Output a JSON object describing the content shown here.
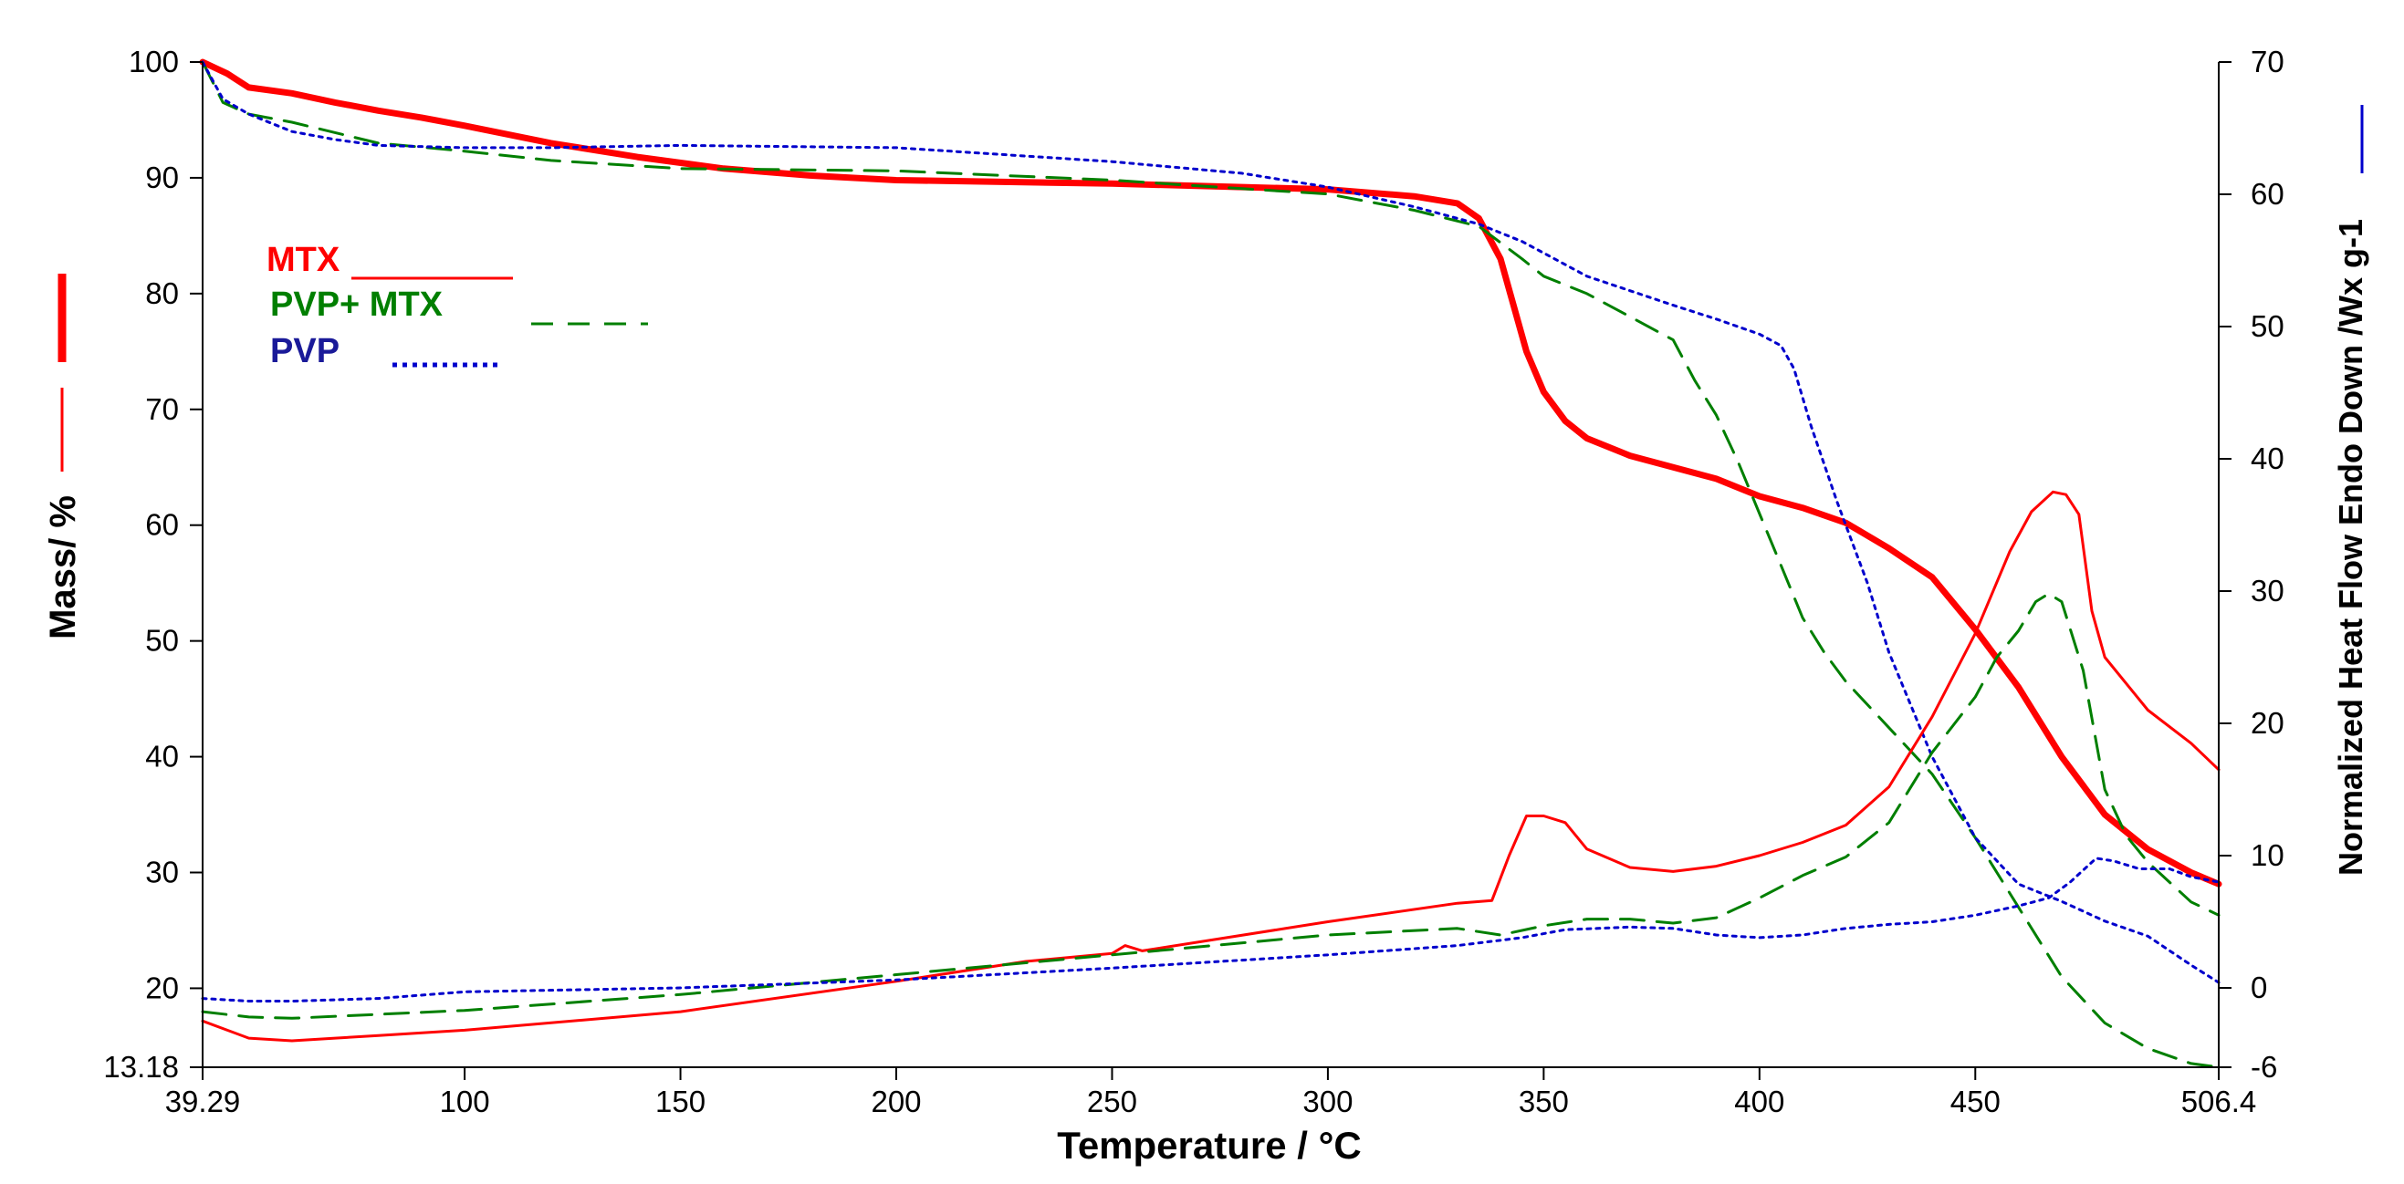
{
  "chart_data": {
    "type": "line",
    "xlabel": "Temperature / °C",
    "ylabel_left": "Mass/ %",
    "ylabel_right": "Normalized Heat Flow Endo Down /Wx g-1",
    "xlim": [
      39.29,
      506.4
    ],
    "ylim_left": [
      13.18,
      100
    ],
    "ylim_right": [
      -6,
      70
    ],
    "x_ticks": [
      "39.29",
      "100",
      "150",
      "200",
      "250",
      "300",
      "350",
      "400",
      "450",
      "506.4"
    ],
    "y_left_ticks": [
      "13.18",
      "20",
      "30",
      "40",
      "50",
      "60",
      "70",
      "80",
      "90",
      "100"
    ],
    "y_right_ticks": [
      "-6",
      "0",
      "10",
      "20",
      "30",
      "40",
      "50",
      "60",
      "70"
    ],
    "legend": [
      {
        "label": "MTX",
        "color": "#ff0000",
        "style": "solid"
      },
      {
        "label": "PVP+ MTX",
        "color": "#007f00",
        "style": "dashed"
      },
      {
        "label": "PVP",
        "color": "#0000cc",
        "style": "dotted"
      }
    ],
    "series": [
      {
        "name": "MTX mass",
        "axis": "left",
        "color": "#ff0000",
        "style": "solid",
        "width": 7,
        "x": [
          39.29,
          45,
          50,
          60,
          70,
          80,
          90,
          100,
          120,
          140,
          160,
          180,
          200,
          250,
          300,
          320,
          330,
          335,
          340,
          343,
          346,
          350,
          355,
          360,
          370,
          380,
          390,
          400,
          410,
          420,
          430,
          440,
          450,
          460,
          470,
          480,
          490,
          500,
          506.4
        ],
        "y": [
          100,
          99,
          97.8,
          97.3,
          96.5,
          95.8,
          95.2,
          94.5,
          93,
          91.8,
          90.8,
          90.2,
          89.8,
          89.5,
          89,
          88.4,
          87.8,
          86.5,
          83,
          79,
          75,
          71.5,
          69,
          67.5,
          66,
          65,
          64,
          62.5,
          61.5,
          60.2,
          58,
          55.5,
          51,
          46,
          40,
          35,
          32,
          30,
          29
        ]
      },
      {
        "name": "PVP+MTX mass",
        "axis": "left",
        "color": "#007f00",
        "style": "dashed",
        "width": 3,
        "x": [
          39.29,
          44,
          50,
          60,
          80,
          100,
          120,
          150,
          200,
          250,
          270,
          300,
          320,
          335,
          345,
          350,
          360,
          370,
          380,
          385,
          390,
          395,
          400,
          405,
          410,
          415,
          420,
          430,
          440,
          450,
          460,
          470,
          480,
          490,
          500,
          506.4
        ],
        "y": [
          100,
          96.5,
          95.5,
          94.8,
          93,
          92.3,
          91.5,
          90.8,
          90.6,
          89.8,
          89.3,
          88.6,
          87.2,
          85.8,
          83,
          81.5,
          80,
          78,
          76,
          72.5,
          69.5,
          65.5,
          61,
          56.5,
          52,
          49,
          46.5,
          42.5,
          38.5,
          33,
          27,
          21,
          17,
          14.8,
          13.5,
          13.18
        ]
      },
      {
        "name": "PVP mass",
        "axis": "left",
        "color": "#0000cc",
        "style": "dotted",
        "width": 3,
        "x": [
          39.29,
          44,
          50,
          60,
          70,
          80,
          100,
          120,
          150,
          200,
          250,
          280,
          300,
          320,
          335,
          345,
          350,
          360,
          380,
          390,
          400,
          405,
          408,
          412,
          418,
          425,
          430,
          440,
          450,
          460,
          470,
          480,
          490,
          500,
          506.4
        ],
        "y": [
          100,
          96.8,
          95.5,
          94,
          93.3,
          92.8,
          92.6,
          92.6,
          92.8,
          92.6,
          91.4,
          90.4,
          89.2,
          87.5,
          86,
          84.5,
          83.5,
          81.5,
          79,
          77.8,
          76.5,
          75.5,
          73.5,
          68.5,
          62,
          55,
          49,
          40,
          33,
          29,
          27.5,
          25.8,
          24.5,
          22,
          20.5
        ]
      },
      {
        "name": "MTX heat flow",
        "axis": "right",
        "color": "#ff0000",
        "style": "solid",
        "width": 3,
        "x": [
          39.29,
          50,
          60,
          70,
          80,
          100,
          150,
          200,
          230,
          250,
          253,
          257,
          300,
          330,
          338,
          342,
          346,
          350,
          355,
          360,
          370,
          380,
          390,
          400,
          410,
          420,
          430,
          440,
          450,
          458,
          463,
          468,
          471,
          474,
          477,
          480,
          490,
          500,
          506.4
        ],
        "y": [
          -2.5,
          -3.8,
          -4,
          -3.8,
          -3.6,
          -3.2,
          -1.8,
          0.5,
          2,
          2.6,
          3.2,
          2.8,
          5,
          6.4,
          6.6,
          10,
          13,
          13,
          12.5,
          10.5,
          9.1,
          8.8,
          9.2,
          10,
          11,
          12.3,
          15.2,
          20.5,
          26.8,
          33,
          36,
          37.5,
          37.3,
          35.8,
          28.5,
          25,
          21,
          18.5,
          16.5
        ]
      },
      {
        "name": "PVP+MTX heat flow",
        "axis": "right",
        "color": "#007f00",
        "style": "dashed",
        "width": 3,
        "x": [
          39.29,
          50,
          60,
          80,
          100,
          150,
          200,
          250,
          300,
          330,
          340,
          350,
          360,
          370,
          380,
          390,
          400,
          410,
          420,
          430,
          440,
          450,
          455,
          460,
          464,
          467,
          470,
          475,
          480,
          485,
          490,
          500,
          506.4
        ],
        "y": [
          -1.8,
          -2.2,
          -2.3,
          -2,
          -1.7,
          -0.5,
          1,
          2.5,
          4,
          4.5,
          4,
          4.7,
          5.2,
          5.2,
          4.9,
          5.3,
          6.8,
          8.5,
          9.9,
          12.5,
          17.8,
          22,
          25,
          27,
          29.2,
          29.8,
          29.2,
          24,
          15,
          11.5,
          9.5,
          6.5,
          5.5
        ]
      },
      {
        "name": "PVP heat flow",
        "axis": "right",
        "color": "#0000cc",
        "style": "dotted",
        "width": 3,
        "x": [
          39.29,
          50,
          60,
          80,
          100,
          150,
          200,
          250,
          300,
          330,
          345,
          355,
          370,
          380,
          390,
          400,
          410,
          420,
          430,
          440,
          450,
          460,
          467,
          472,
          478,
          482,
          488,
          495,
          500,
          506.4
        ],
        "y": [
          -0.8,
          -1,
          -1,
          -0.8,
          -0.3,
          0,
          0.6,
          1.5,
          2.5,
          3.2,
          3.8,
          4.4,
          4.6,
          4.5,
          4,
          3.8,
          4,
          4.5,
          4.8,
          5,
          5.5,
          6.2,
          6.8,
          8,
          9.8,
          9.6,
          9,
          9,
          8.4,
          8
        ]
      }
    ]
  }
}
